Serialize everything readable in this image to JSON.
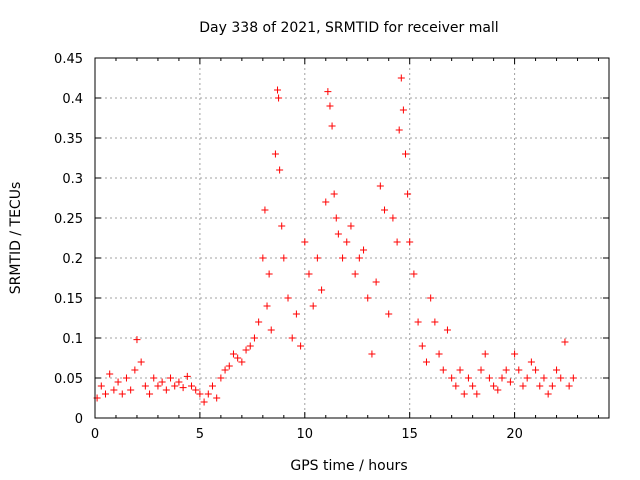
{
  "chart_data": {
    "type": "scatter",
    "title": "Day 338 of 2021, SRMTID for receiver mall",
    "xlabel": "GPS time / hours",
    "ylabel": "SRMTID / TECUs",
    "xlim": [
      0,
      24.5
    ],
    "ylim": [
      0,
      0.45
    ],
    "xticks": [
      0,
      5,
      10,
      15,
      20
    ],
    "yticks": [
      0,
      0.05,
      0.1,
      0.15,
      0.2,
      0.25,
      0.3,
      0.35,
      0.4,
      0.45
    ],
    "xtick_labels": [
      "0",
      "5",
      "10",
      "15",
      "20"
    ],
    "ytick_labels": [
      "0",
      "0.05",
      "0.1",
      "0.15",
      "0.2",
      "0.25",
      "0.3",
      "0.35",
      "0.4",
      "0.45"
    ],
    "grid": true,
    "marker": "plus",
    "series": [
      {
        "name": "SRMTID",
        "color": "#ff0000",
        "points": [
          [
            0.1,
            0.025
          ],
          [
            0.3,
            0.04
          ],
          [
            0.5,
            0.03
          ],
          [
            0.7,
            0.055
          ],
          [
            0.9,
            0.035
          ],
          [
            1.1,
            0.045
          ],
          [
            1.3,
            0.03
          ],
          [
            1.5,
            0.05
          ],
          [
            1.7,
            0.035
          ],
          [
            1.9,
            0.06
          ],
          [
            2.0,
            0.098
          ],
          [
            2.2,
            0.07
          ],
          [
            2.4,
            0.04
          ],
          [
            2.6,
            0.03
          ],
          [
            2.8,
            0.05
          ],
          [
            3.0,
            0.04
          ],
          [
            3.2,
            0.045
          ],
          [
            3.4,
            0.035
          ],
          [
            3.6,
            0.05
          ],
          [
            3.8,
            0.04
          ],
          [
            4.0,
            0.045
          ],
          [
            4.2,
            0.038
          ],
          [
            4.4,
            0.052
          ],
          [
            4.6,
            0.04
          ],
          [
            4.8,
            0.035
          ],
          [
            5.0,
            0.03
          ],
          [
            5.2,
            0.02
          ],
          [
            5.4,
            0.03
          ],
          [
            5.6,
            0.04
          ],
          [
            5.8,
            0.025
          ],
          [
            6.0,
            0.05
          ],
          [
            6.2,
            0.06
          ],
          [
            6.4,
            0.065
          ],
          [
            6.6,
            0.08
          ],
          [
            6.8,
            0.075
          ],
          [
            7.0,
            0.07
          ],
          [
            7.2,
            0.085
          ],
          [
            7.4,
            0.09
          ],
          [
            7.6,
            0.1
          ],
          [
            7.8,
            0.12
          ],
          [
            8.0,
            0.2
          ],
          [
            8.1,
            0.26
          ],
          [
            8.2,
            0.14
          ],
          [
            8.3,
            0.18
          ],
          [
            8.4,
            0.11
          ],
          [
            8.6,
            0.33
          ],
          [
            8.7,
            0.41
          ],
          [
            8.75,
            0.4
          ],
          [
            8.8,
            0.31
          ],
          [
            8.9,
            0.24
          ],
          [
            9.0,
            0.2
          ],
          [
            9.2,
            0.15
          ],
          [
            9.4,
            0.1
          ],
          [
            9.6,
            0.13
          ],
          [
            9.8,
            0.09
          ],
          [
            10.0,
            0.22
          ],
          [
            10.2,
            0.18
          ],
          [
            10.4,
            0.14
          ],
          [
            10.6,
            0.2
          ],
          [
            10.8,
            0.16
          ],
          [
            11.0,
            0.27
          ],
          [
            11.1,
            0.408
          ],
          [
            11.2,
            0.39
          ],
          [
            11.3,
            0.365
          ],
          [
            11.4,
            0.28
          ],
          [
            11.5,
            0.25
          ],
          [
            11.6,
            0.23
          ],
          [
            11.8,
            0.2
          ],
          [
            12.0,
            0.22
          ],
          [
            12.2,
            0.24
          ],
          [
            12.4,
            0.18
          ],
          [
            12.6,
            0.2
          ],
          [
            12.8,
            0.21
          ],
          [
            13.0,
            0.15
          ],
          [
            13.2,
            0.08
          ],
          [
            13.4,
            0.17
          ],
          [
            13.6,
            0.29
          ],
          [
            13.8,
            0.26
          ],
          [
            14.0,
            0.13
          ],
          [
            14.2,
            0.25
          ],
          [
            14.4,
            0.22
          ],
          [
            14.5,
            0.36
          ],
          [
            14.6,
            0.425
          ],
          [
            14.7,
            0.385
          ],
          [
            14.8,
            0.33
          ],
          [
            14.9,
            0.28
          ],
          [
            15.0,
            0.22
          ],
          [
            15.2,
            0.18
          ],
          [
            15.4,
            0.12
          ],
          [
            15.6,
            0.09
          ],
          [
            15.8,
            0.07
          ],
          [
            16.0,
            0.15
          ],
          [
            16.2,
            0.12
          ],
          [
            16.4,
            0.08
          ],
          [
            16.6,
            0.06
          ],
          [
            16.8,
            0.11
          ],
          [
            17.0,
            0.05
          ],
          [
            17.2,
            0.04
          ],
          [
            17.4,
            0.06
          ],
          [
            17.6,
            0.03
          ],
          [
            17.8,
            0.05
          ],
          [
            18.0,
            0.04
          ],
          [
            18.2,
            0.03
          ],
          [
            18.4,
            0.06
          ],
          [
            18.6,
            0.08
          ],
          [
            18.8,
            0.05
          ],
          [
            19.0,
            0.04
          ],
          [
            19.2,
            0.035
          ],
          [
            19.4,
            0.05
          ],
          [
            19.6,
            0.06
          ],
          [
            19.8,
            0.045
          ],
          [
            20.0,
            0.08
          ],
          [
            20.2,
            0.06
          ],
          [
            20.4,
            0.04
          ],
          [
            20.6,
            0.05
          ],
          [
            20.8,
            0.07
          ],
          [
            21.0,
            0.06
          ],
          [
            21.2,
            0.04
          ],
          [
            21.4,
            0.05
          ],
          [
            21.6,
            0.03
          ],
          [
            21.8,
            0.04
          ],
          [
            22.0,
            0.06
          ],
          [
            22.2,
            0.05
          ],
          [
            22.4,
            0.095
          ],
          [
            22.6,
            0.04
          ],
          [
            22.8,
            0.05
          ]
        ]
      }
    ]
  }
}
